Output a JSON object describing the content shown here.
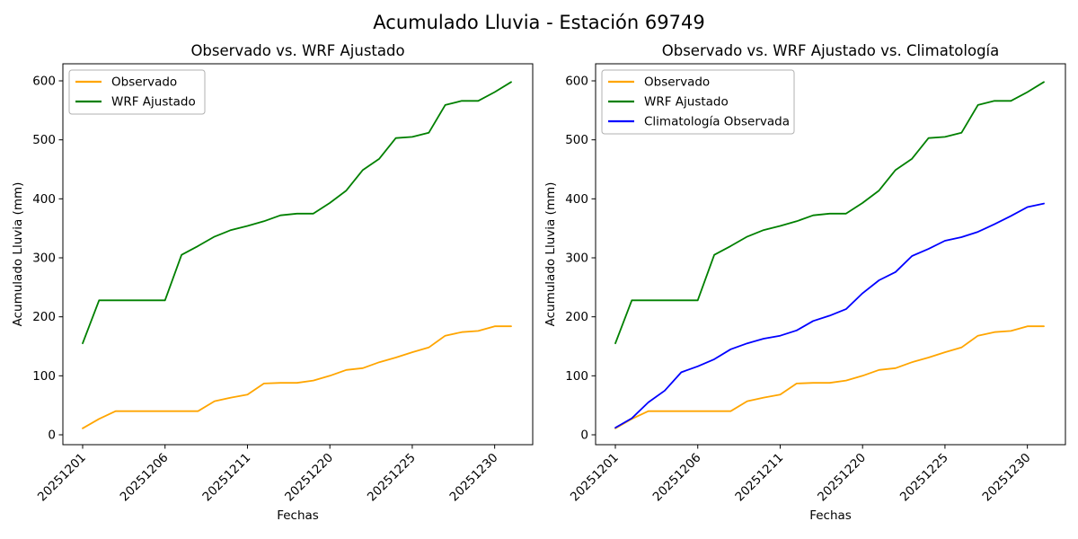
{
  "figure": {
    "title": "Acumulado Lluvia - Estación 69749",
    "background": "#ffffff"
  },
  "colors": {
    "observado": "#ffa500",
    "wrf_ajustado": "#008000",
    "climatologia": "#0000ff",
    "axis": "#000000",
    "legend_border": "#b0b0b0"
  },
  "chart_data": [
    {
      "type": "line",
      "title": "Observado vs. WRF Ajustado",
      "xlabel": "Fechas",
      "ylabel": "Acumulado Lluvia (mm)",
      "ylim": [
        0,
        600
      ],
      "yticks": [
        0,
        100,
        200,
        300,
        400,
        500,
        600
      ],
      "grid": false,
      "legend_position": "upper left",
      "x": [
        "20251201",
        "20251202",
        "20251203",
        "20251204",
        "20251205",
        "20251206",
        "20251207",
        "20251208",
        "20251209",
        "20251210",
        "20251211",
        "20251212",
        "20251213",
        "20251214",
        "20251219",
        "20251220",
        "20251221",
        "20251222",
        "20251223",
        "20251224",
        "20251225",
        "20251226",
        "20251227",
        "20251228",
        "20251229",
        "20251230",
        "20251231"
      ],
      "xtick_indices": [
        0,
        5,
        10,
        15,
        20,
        25
      ],
      "xtick_labels": [
        "20251201",
        "20251206",
        "20251211",
        "20251220",
        "20251225",
        "20251230"
      ],
      "series": [
        {
          "name": "Observado",
          "color": "#ffa500",
          "values": [
            11,
            27,
            40,
            40,
            40,
            40,
            40,
            40,
            57,
            63,
            68,
            87,
            88,
            88,
            92,
            100,
            110,
            113,
            123,
            131,
            140,
            148,
            168,
            174,
            176,
            184,
            184
          ]
        },
        {
          "name": "WRF Ajustado",
          "color": "#008000",
          "values": [
            155,
            228,
            228,
            228,
            228,
            228,
            305,
            320,
            336,
            347,
            354,
            362,
            372,
            375,
            375,
            393,
            414,
            449,
            468,
            503,
            505,
            512,
            559,
            566,
            566,
            581,
            598
          ]
        }
      ]
    },
    {
      "type": "line",
      "title": "Observado vs. WRF Ajustado vs. Climatología",
      "xlabel": "Fechas",
      "ylabel": "Acumulado Lluvia (mm)",
      "ylim": [
        0,
        600
      ],
      "yticks": [
        0,
        100,
        200,
        300,
        400,
        500,
        600
      ],
      "grid": false,
      "legend_position": "upper left",
      "x": [
        "20251201",
        "20251202",
        "20251203",
        "20251204",
        "20251205",
        "20251206",
        "20251207",
        "20251208",
        "20251209",
        "20251210",
        "20251211",
        "20251212",
        "20251213",
        "20251214",
        "20251219",
        "20251220",
        "20251221",
        "20251222",
        "20251223",
        "20251224",
        "20251225",
        "20251226",
        "20251227",
        "20251228",
        "20251229",
        "20251230",
        "20251231"
      ],
      "xtick_indices": [
        0,
        5,
        10,
        15,
        20,
        25
      ],
      "xtick_labels": [
        "20251201",
        "20251206",
        "20251211",
        "20251220",
        "20251225",
        "20251230"
      ],
      "series": [
        {
          "name": "Observado",
          "color": "#ffa500",
          "values": [
            11,
            27,
            40,
            40,
            40,
            40,
            40,
            40,
            57,
            63,
            68,
            87,
            88,
            88,
            92,
            100,
            110,
            113,
            123,
            131,
            140,
            148,
            168,
            174,
            176,
            184,
            184
          ]
        },
        {
          "name": "WRF Ajustado",
          "color": "#008000",
          "values": [
            155,
            228,
            228,
            228,
            228,
            228,
            305,
            320,
            336,
            347,
            354,
            362,
            372,
            375,
            375,
            393,
            414,
            449,
            468,
            503,
            505,
            512,
            559,
            566,
            566,
            581,
            598
          ]
        },
        {
          "name": "Climatología Observada",
          "color": "#0000ff",
          "values": [
            12,
            28,
            55,
            75,
            106,
            116,
            128,
            145,
            155,
            163,
            168,
            177,
            193,
            202,
            213,
            240,
            262,
            276,
            303,
            315,
            329,
            335,
            344,
            357,
            371,
            386,
            392
          ]
        }
      ]
    }
  ]
}
